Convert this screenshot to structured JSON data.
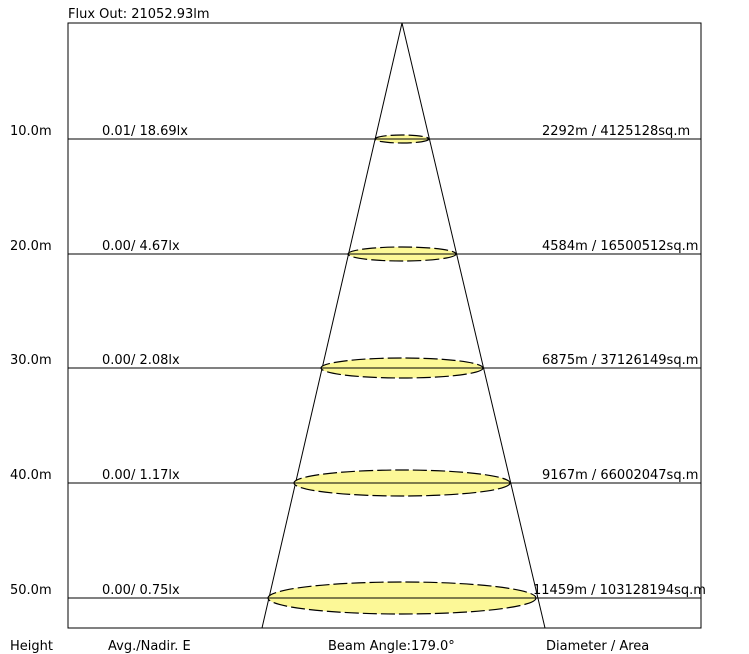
{
  "flux_out": "Flux Out: 21052.93lm",
  "footer": {
    "height": "Height",
    "avg_nadir": "Avg./Nadir. E",
    "beam_angle": "Beam Angle:179.0°",
    "diameter_area": "Diameter / Area"
  },
  "levels": [
    {
      "height": "10.0m",
      "illuminance": "0.01/ 18.69lx",
      "diameter_area": "2292m / 4125128sq.m"
    },
    {
      "height": "20.0m",
      "illuminance": "0.00/ 4.67lx",
      "diameter_area": "4584m / 16500512sq.m"
    },
    {
      "height": "30.0m",
      "illuminance": "0.00/ 2.08lx",
      "diameter_area": "6875m / 37126149sq.m"
    },
    {
      "height": "40.0m",
      "illuminance": "0.00/ 1.17lx",
      "diameter_area": "9167m / 66002047sq.m"
    },
    {
      "height": "50.0m",
      "illuminance": "0.00/ 0.75lx",
      "diameter_area": "11459m / 103128194sq.m"
    }
  ],
  "colors": {
    "spot_fill": "#fcf897",
    "line": "#000000"
  }
}
